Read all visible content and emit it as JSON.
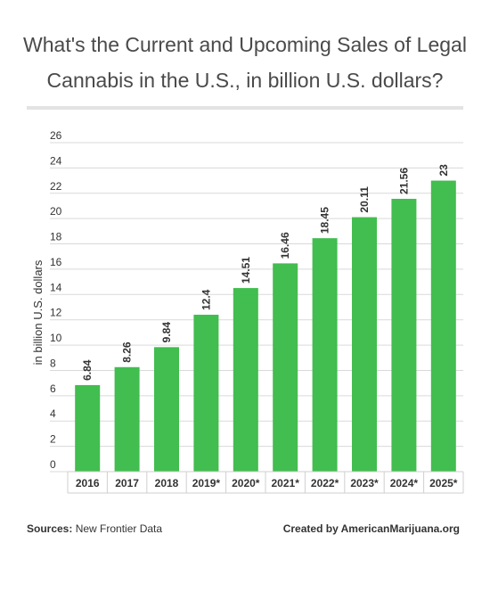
{
  "chart_data": {
    "type": "bar",
    "title": "What's the Current and Upcoming Sales of Legal Cannabis in the U.S., in billion U.S. dollars?",
    "ylabel": "in billion U.S. dollars",
    "xlabel": "",
    "ylim": [
      0,
      26
    ],
    "yticks": [
      0,
      2,
      4,
      6,
      8,
      10,
      12,
      14,
      16,
      18,
      20,
      22,
      24,
      26
    ],
    "categories": [
      "2016",
      "2017",
      "2018",
      "2019*",
      "2020*",
      "2021*",
      "2022*",
      "2023*",
      "2024*",
      "2025*"
    ],
    "values": [
      6.84,
      8.26,
      9.84,
      12.4,
      14.51,
      16.46,
      18.45,
      20.11,
      21.56,
      23
    ],
    "data_labels": [
      "6.84",
      "8.26",
      "9.84",
      "12.4",
      "14.51",
      "16.46",
      "18.45",
      "20.11",
      "21.56",
      "23"
    ],
    "grid": true,
    "legend": "none",
    "bar_color": "#42bd4f"
  },
  "footer": {
    "sources_label": "Sources:",
    "sources_value": " New Frontier Data",
    "credit": "Created by AmericanMarijuana.org"
  }
}
